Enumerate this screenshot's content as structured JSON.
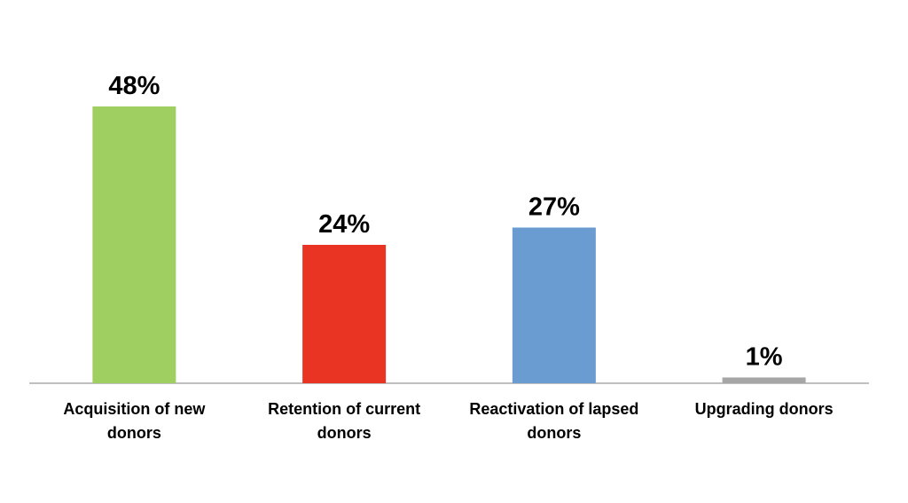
{
  "chart_data": {
    "type": "bar",
    "categories": [
      "Acquisition of new donors",
      "Retention of current donors",
      "Reactivation of lapsed donors",
      "Upgrading donors"
    ],
    "values": [
      48,
      24,
      27,
      1
    ],
    "value_labels": [
      "48%",
      "24%",
      "27%",
      "1%"
    ],
    "colors": [
      "#a0cf61",
      "#e93323",
      "#6a9bd1",
      "#a6a6a6"
    ]
  }
}
